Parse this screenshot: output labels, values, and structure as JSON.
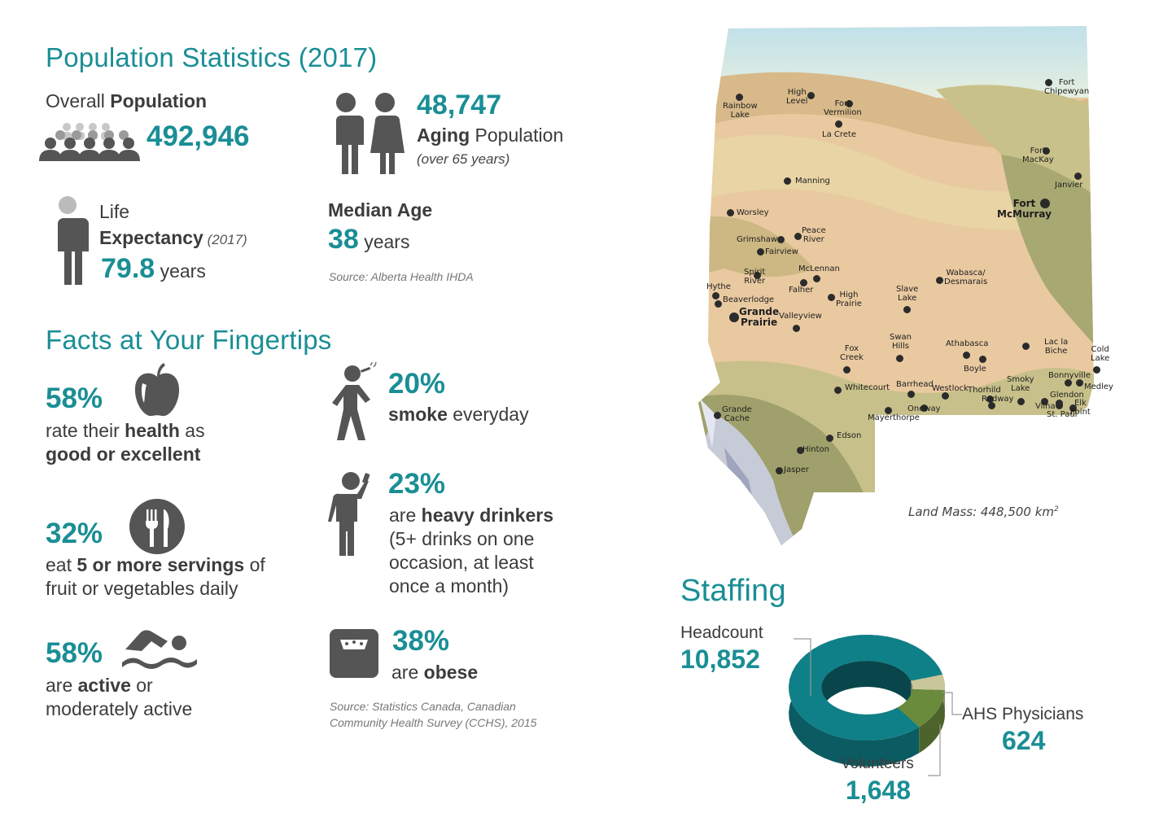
{
  "population": {
    "heading": "Population Statistics (2017)",
    "overall_label_pre": "Overall ",
    "overall_label_bold": "Population",
    "overall_value": "492,946",
    "aging_value": "48,747",
    "aging_label_bold": "Aging",
    "aging_label_rest": " Population",
    "aging_note": "(over 65 years)",
    "life_label_1": "Life",
    "life_label_bold": "Expectancy",
    "life_label_note": " (2017)",
    "life_value": "79.8",
    "life_unit": " years",
    "median_label": "Median Age",
    "median_value": "38",
    "median_unit": " years",
    "source": "Source: Alberta Health IHDA",
    "icons": [
      "crowd-icon",
      "couple-icon",
      "person-icon"
    ]
  },
  "facts": {
    "heading": "Facts at Your Fingertips",
    "items": [
      {
        "pct": "58%",
        "line1_pre": "rate their ",
        "line1_bold": "health",
        "line1_post": " as",
        "line2_bold": "good or excellent",
        "icon": "apple-icon"
      },
      {
        "pct": "32%",
        "line1_pre": "eat ",
        "line1_bold": "5 or more servings",
        "line1_post": " of",
        "line2": "fruit or vegetables daily",
        "icon": "fork-knife-icon"
      },
      {
        "pct": "58%",
        "line1_pre": "are ",
        "line1_bold": "active",
        "line1_post": " or",
        "line2": "moderately active",
        "icon": "swimmer-icon"
      },
      {
        "pct": "20%",
        "line1_bold": "smoke",
        "line1_post": " everyday",
        "icon": "smoker-icon"
      },
      {
        "pct": "23%",
        "line1_pre": "are ",
        "line1_bold": "heavy drinkers",
        "line2": "(5+ drinks on one",
        "line3": "occasion, at least",
        "line4": "once a month)",
        "icon": "drinker-icon"
      },
      {
        "pct": "38%",
        "line1_pre": "are ",
        "line1_bold": "obese",
        "icon": "scale-icon"
      }
    ],
    "source_line1": "Source: Statistics Canada, Canadian",
    "source_line2": "Community Health Survey (CCHS), 2015"
  },
  "map": {
    "land_mass_label": "Land Mass: 448,500 km",
    "land_mass_sup": "2",
    "cities": [
      {
        "name": "Fort\nChipewyan"
      },
      {
        "name": "High\nLevel"
      },
      {
        "name": "Rainbow\nLake"
      },
      {
        "name": "Fort\nVermilion"
      },
      {
        "name": "La Crete"
      },
      {
        "name": "Fort\nMacKay"
      },
      {
        "name": "Manning"
      },
      {
        "name": "Janvier"
      },
      {
        "name": "Fort\nMcMurray",
        "major": true
      },
      {
        "name": "Worsley"
      },
      {
        "name": "Peace\nRiver"
      },
      {
        "name": "Grimshaw"
      },
      {
        "name": "Fairview"
      },
      {
        "name": "Spirit\nRiver"
      },
      {
        "name": "McLennan"
      },
      {
        "name": "Falher"
      },
      {
        "name": "Hythe"
      },
      {
        "name": "Beaverlodge"
      },
      {
        "name": "High\nPrairie"
      },
      {
        "name": "Slave\nLake"
      },
      {
        "name": "Wabasca/\nDesmarais"
      },
      {
        "name": "Grande\nPrairie",
        "major": true
      },
      {
        "name": "Valleyview"
      },
      {
        "name": "Swan\nHills"
      },
      {
        "name": "Fox\nCreek"
      },
      {
        "name": "Athabasca"
      },
      {
        "name": "Lac la\nBiche"
      },
      {
        "name": "Cold\nLake"
      },
      {
        "name": "Boyle"
      },
      {
        "name": "Whitecourt"
      },
      {
        "name": "Barrhead"
      },
      {
        "name": "Westlock"
      },
      {
        "name": "Thorhild"
      },
      {
        "name": "Radway"
      },
      {
        "name": "Smoky\nLake"
      },
      {
        "name": "Bonnyville"
      },
      {
        "name": "Medley"
      },
      {
        "name": "Glendon"
      },
      {
        "name": "Vilna"
      },
      {
        "name": "St. Paul"
      },
      {
        "name": "Elk\nPoint"
      },
      {
        "name": "Onoway"
      },
      {
        "name": "Mayerthorpe"
      },
      {
        "name": "Grande\nCache"
      },
      {
        "name": "Edson"
      },
      {
        "name": "Hinton"
      },
      {
        "name": "Jasper"
      }
    ]
  },
  "staffing": {
    "heading": "Staffing",
    "segments": [
      {
        "label": "Headcount",
        "value": "10,852",
        "amount": 10852,
        "color": "#0f8088"
      },
      {
        "label": "Volunteers",
        "value": "1,648",
        "amount": 1648,
        "color": "#6a8a3c"
      },
      {
        "label": "AHS Physicians",
        "value": "624",
        "amount": 624,
        "color": "#c9c69a"
      }
    ]
  }
}
